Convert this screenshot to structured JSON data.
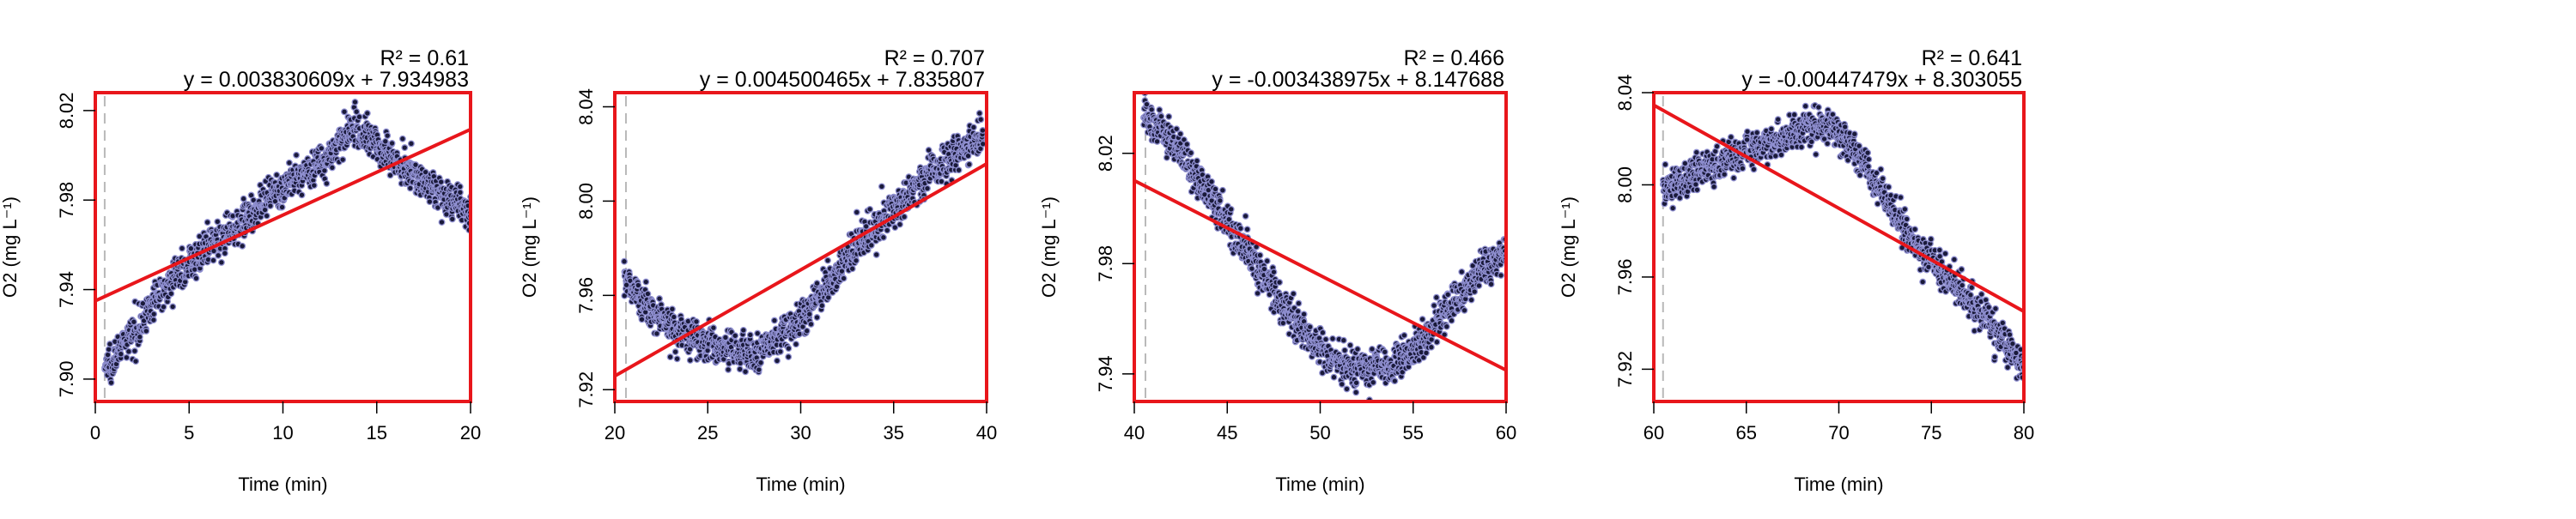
{
  "colors": {
    "fit_line": "#e8161b",
    "frame": "#e8161b",
    "point_fill": "#1a1a3a",
    "point_stroke": "#8f8fd0",
    "start_marker": "#b9b9b9"
  },
  "chart_data": [
    {
      "type": "scatter",
      "xlabel": "Time (min)",
      "ylabel": "O2 (mg L⁻¹)",
      "r2_label": "R² = 0.61",
      "equation": "y = 0.003830609x + 7.934983",
      "xlim": [
        0,
        20
      ],
      "ylim": [
        7.89,
        8.028
      ],
      "xticks": [
        0,
        5,
        10,
        15,
        20
      ],
      "yticks": [
        7.9,
        7.94,
        7.98,
        8.02
      ],
      "ytick_labels": [
        "7.90",
        "7.94",
        "7.98",
        "8.02"
      ],
      "fit": {
        "slope": 0.003830609,
        "intercept": 7.934983
      },
      "start_marker_x": 0.5,
      "noise": 0.004,
      "trend": [
        [
          0.5,
          7.905
        ],
        [
          2,
          7.92
        ],
        [
          4,
          7.945
        ],
        [
          7,
          7.965
        ],
        [
          10,
          7.985
        ],
        [
          12.5,
          8.0
        ],
        [
          13.8,
          8.013
        ],
        [
          16,
          7.998
        ],
        [
          18,
          7.985
        ],
        [
          20,
          7.974
        ]
      ]
    },
    {
      "type": "scatter",
      "xlabel": "Time (min)",
      "ylabel": "O2 (mg L⁻¹)",
      "r2_label": "R² = 0.707",
      "equation": "y = 0.004500465x + 7.835807",
      "xlim": [
        20,
        40
      ],
      "ylim": [
        7.915,
        8.046
      ],
      "xticks": [
        20,
        25,
        30,
        35,
        40
      ],
      "yticks": [
        7.92,
        7.96,
        8.0,
        8.04
      ],
      "ytick_labels": [
        "7.92",
        "7.96",
        "8.00",
        "8.04"
      ],
      "fit": {
        "slope": 0.004500465,
        "intercept": 7.835807
      },
      "start_marker_x": 20.6,
      "noise": 0.004,
      "trend": [
        [
          20.5,
          7.968
        ],
        [
          22,
          7.953
        ],
        [
          24,
          7.943
        ],
        [
          26,
          7.937
        ],
        [
          27.5,
          7.935
        ],
        [
          30,
          7.95
        ],
        [
          33,
          7.98
        ],
        [
          36,
          8.005
        ],
        [
          38,
          8.018
        ],
        [
          39.8,
          8.028
        ]
      ]
    },
    {
      "type": "scatter",
      "xlabel": "Time (min)",
      "ylabel": "O2 (mg L⁻¹)",
      "r2_label": "R² = 0.466",
      "equation": "y = -0.003438975x + 8.147688",
      "xlim": [
        40,
        60
      ],
      "ylim": [
        7.93,
        8.042
      ],
      "xticks": [
        40,
        45,
        50,
        55,
        60
      ],
      "yticks": [
        7.94,
        7.98,
        8.02
      ],
      "ytick_labels": [
        "7.94",
        "7.98",
        "8.02"
      ],
      "fit": {
        "slope": -0.003438975,
        "intercept": 8.147688
      },
      "start_marker_x": 40.6,
      "noise": 0.0035,
      "trend": [
        [
          40.5,
          8.035
        ],
        [
          42,
          8.025
        ],
        [
          44,
          8.005
        ],
        [
          46,
          7.985
        ],
        [
          48,
          7.965
        ],
        [
          50,
          7.948
        ],
        [
          52,
          7.942
        ],
        [
          54,
          7.943
        ],
        [
          55.5,
          7.952
        ],
        [
          58,
          7.972
        ],
        [
          60,
          7.985
        ]
      ]
    },
    {
      "type": "scatter",
      "xlabel": "Time (min)",
      "ylabel": "O2 (mg L⁻¹)",
      "r2_label": "R² = 0.641",
      "equation": "y = -0.00447479x + 8.303055",
      "xlim": [
        60,
        80
      ],
      "ylim": [
        7.906,
        8.04
      ],
      "xticks": [
        60,
        65,
        70,
        75,
        80
      ],
      "yticks": [
        7.92,
        7.96,
        8.0,
        8.04
      ],
      "ytick_labels": [
        "7.92",
        "7.96",
        "8.00",
        "8.04"
      ],
      "fit": {
        "slope": -0.00447479,
        "intercept": 8.303055
      },
      "start_marker_x": 60.5,
      "noise": 0.004,
      "trend": [
        [
          60.5,
          7.998
        ],
        [
          63,
          8.008
        ],
        [
          66,
          8.018
        ],
        [
          69,
          8.026
        ],
        [
          70.5,
          8.02
        ],
        [
          72,
          8.0
        ],
        [
          74,
          7.975
        ],
        [
          76,
          7.958
        ],
        [
          78,
          7.943
        ],
        [
          80,
          7.92
        ]
      ]
    }
  ]
}
